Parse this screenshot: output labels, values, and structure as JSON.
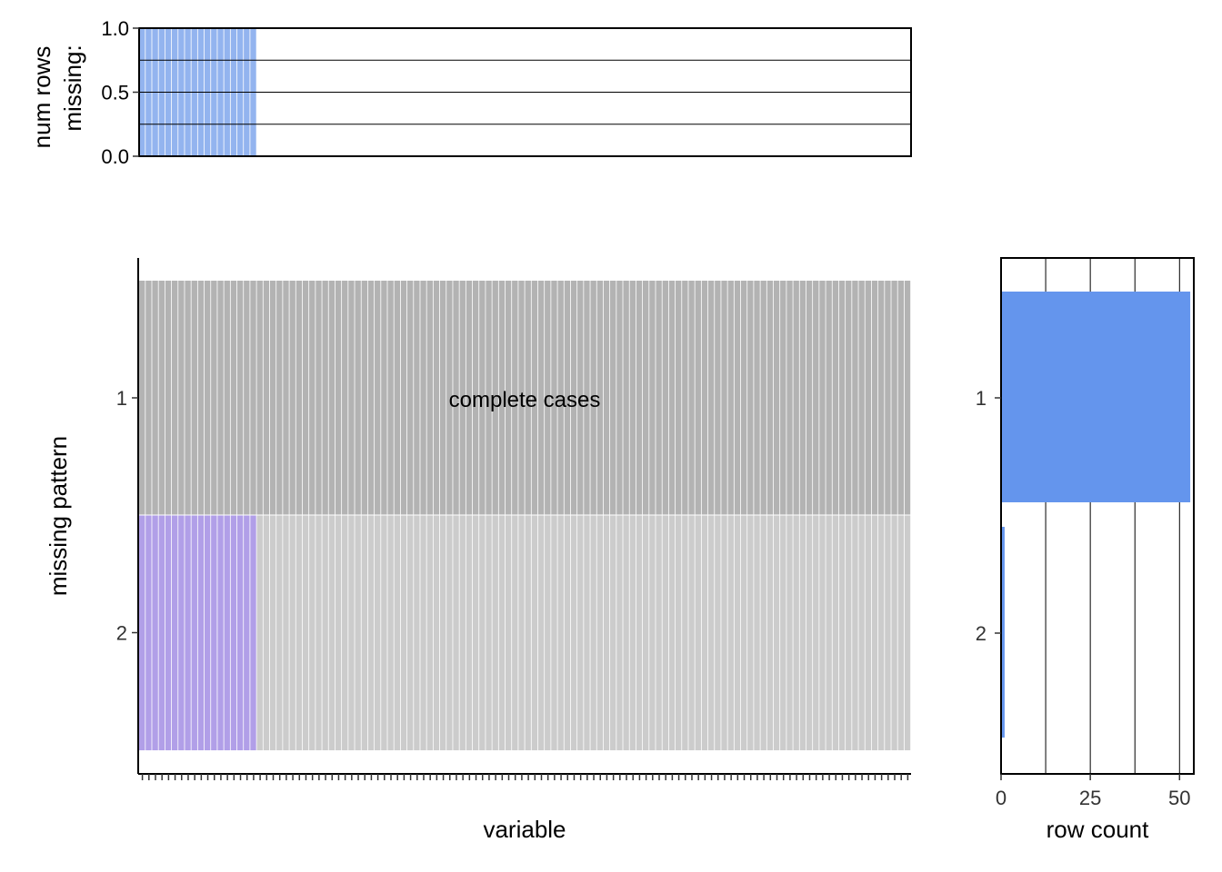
{
  "chart_data": [
    {
      "type": "bar",
      "panel": "top",
      "ylabel": [
        "num rows",
        "missing:"
      ],
      "xlabel": "",
      "ylim": [
        0,
        1.0
      ],
      "yticks": [
        0.0,
        0.5,
        1.0
      ],
      "yticks_labels": [
        "0.0",
        "0.5",
        "1.0"
      ],
      "n_variables": 118,
      "n_missing_variables": 18,
      "missing_fraction": 1.0,
      "colors": {
        "missing": "#93b4ef",
        "grid": "#000000"
      },
      "grid": "horizontal"
    },
    {
      "type": "heatmap",
      "panel": "main",
      "xlabel": "variable",
      "ylabel": "missing pattern",
      "patterns": [
        "1",
        "2"
      ],
      "pattern_labels": {
        "complete": "complete cases"
      },
      "n_variables": 118,
      "n_missing_variables": 18,
      "colors": {
        "complete": "#b3b3b3",
        "observed": "#cccccc",
        "missing": "#b19fe8"
      }
    },
    {
      "type": "bar",
      "panel": "right",
      "orientation": "horizontal",
      "xlabel": "row count",
      "categories": [
        "1",
        "2"
      ],
      "values": [
        53,
        1
      ],
      "xlim": [
        0,
        54
      ],
      "xticks": [
        0,
        25,
        50
      ],
      "xticks_labels": [
        "0",
        "25",
        "50"
      ],
      "colors": {
        "bar": "#6495ed"
      },
      "grid": "vertical"
    }
  ]
}
